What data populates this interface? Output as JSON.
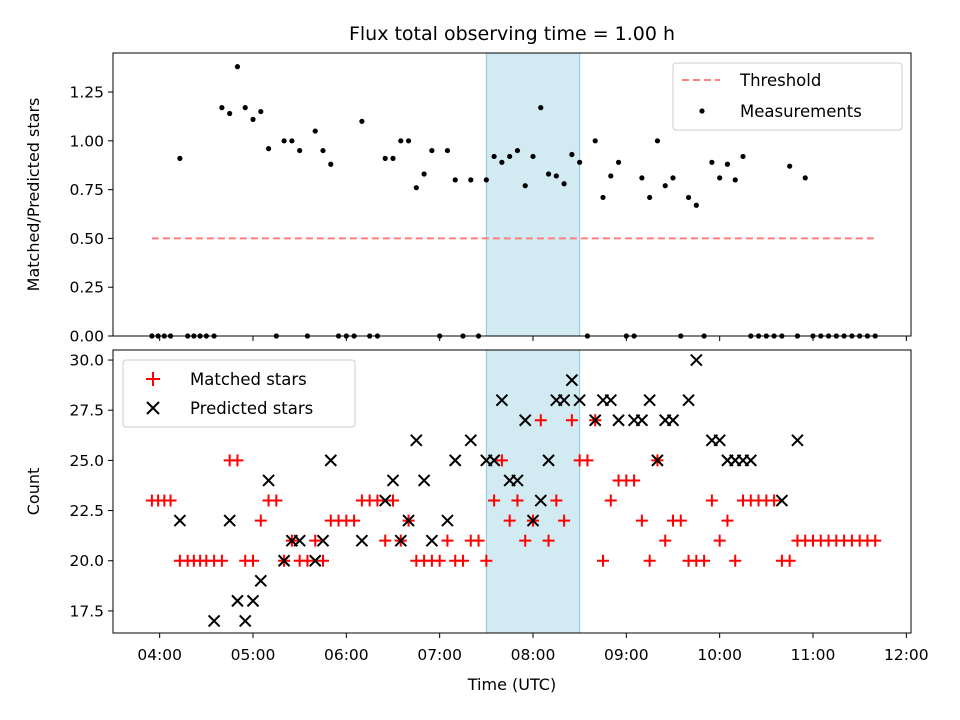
{
  "figure": {
    "title": "Flux total observing time = 1.00 h",
    "xlabel": "Time (UTC)",
    "x_ticks": [
      "04:00",
      "05:00",
      "06:00",
      "07:00",
      "08:00",
      "09:00",
      "10:00",
      "11:00",
      "12:00"
    ],
    "shaded_window": {
      "start": "07:30",
      "end": "08:30",
      "color": "#add8e6"
    }
  },
  "chart_data": [
    {
      "type": "scatter",
      "ylabel": "Matched/Predicted stars",
      "xlim": [
        "03:30",
        "12:03"
      ],
      "ylim": [
        0,
        1.45
      ],
      "y_ticks": [
        "0.00",
        "0.25",
        "0.50",
        "0.75",
        "1.00",
        "1.25"
      ],
      "legend_position": "upper-right",
      "threshold": {
        "name": "Threshold",
        "value": 0.5,
        "x_start": "03:55",
        "x_end": "11:40",
        "color": "#ff7f7f"
      },
      "series": [
        {
          "name": "Measurements",
          "color": "#000000",
          "points": [
            [
              "03:55",
              0
            ],
            [
              "03:59",
              0
            ],
            [
              "04:03",
              0
            ],
            [
              "04:07",
              0
            ],
            [
              "04:13",
              0.91
            ],
            [
              "04:18",
              0
            ],
            [
              "04:22",
              0
            ],
            [
              "04:26",
              0
            ],
            [
              "04:30",
              0
            ],
            [
              "04:35",
              0
            ],
            [
              "04:40",
              1.17
            ],
            [
              "04:45",
              1.14
            ],
            [
              "04:50",
              1.38
            ],
            [
              "04:55",
              1.17
            ],
            [
              "05:00",
              1.11
            ],
            [
              "05:05",
              1.15
            ],
            [
              "05:10",
              0.96
            ],
            [
              "05:15",
              0
            ],
            [
              "05:20",
              1.0
            ],
            [
              "05:25",
              1.0
            ],
            [
              "05:30",
              0.95
            ],
            [
              "05:35",
              0
            ],
            [
              "05:40",
              1.05
            ],
            [
              "05:45",
              0.95
            ],
            [
              "05:50",
              0.88
            ],
            [
              "05:55",
              0
            ],
            [
              "06:00",
              0
            ],
            [
              "06:05",
              0
            ],
            [
              "06:10",
              1.1
            ],
            [
              "06:15",
              0
            ],
            [
              "06:20",
              0
            ],
            [
              "06:25",
              0.91
            ],
            [
              "06:30",
              0.91
            ],
            [
              "06:35",
              1.0
            ],
            [
              "06:40",
              1.0
            ],
            [
              "06:45",
              0.76
            ],
            [
              "06:50",
              0.83
            ],
            [
              "06:55",
              0.95
            ],
            [
              "07:00",
              0
            ],
            [
              "07:05",
              0.95
            ],
            [
              "07:10",
              0.8
            ],
            [
              "07:15",
              0
            ],
            [
              "07:20",
              0.8
            ],
            [
              "07:25",
              0
            ],
            [
              "07:30",
              0.8
            ],
            [
              "07:35",
              0.92
            ],
            [
              "07:40",
              0.89
            ],
            [
              "07:45",
              0.92
            ],
            [
              "07:50",
              0.95
            ],
            [
              "07:55",
              0.77
            ],
            [
              "08:00",
              0.92
            ],
            [
              "08:05",
              1.17
            ],
            [
              "08:10",
              0.83
            ],
            [
              "08:15",
              0.82
            ],
            [
              "08:20",
              0.78
            ],
            [
              "08:25",
              0.93
            ],
            [
              "08:30",
              0.89
            ],
            [
              "08:35",
              0
            ],
            [
              "08:40",
              1.0
            ],
            [
              "08:45",
              0.71
            ],
            [
              "08:50",
              0.82
            ],
            [
              "08:55",
              0.89
            ],
            [
              "09:00",
              0
            ],
            [
              "09:05",
              0
            ],
            [
              "09:10",
              0.81
            ],
            [
              "09:15",
              0.71
            ],
            [
              "09:20",
              1.0
            ],
            [
              "09:25",
              0.77
            ],
            [
              "09:30",
              0.81
            ],
            [
              "09:35",
              0
            ],
            [
              "09:40",
              0.71
            ],
            [
              "09:45",
              0.67
            ],
            [
              "09:50",
              0
            ],
            [
              "09:55",
              0.89
            ],
            [
              "10:00",
              0.81
            ],
            [
              "10:05",
              0.88
            ],
            [
              "10:10",
              0.8
            ],
            [
              "10:15",
              0.92
            ],
            [
              "10:20",
              0
            ],
            [
              "10:25",
              0
            ],
            [
              "10:30",
              0
            ],
            [
              "10:35",
              0
            ],
            [
              "10:40",
              0
            ],
            [
              "10:45",
              0.87
            ],
            [
              "10:50",
              0
            ],
            [
              "10:55",
              0.81
            ],
            [
              "11:00",
              0
            ],
            [
              "11:05",
              0
            ],
            [
              "11:10",
              0
            ],
            [
              "11:15",
              0
            ],
            [
              "11:20",
              0
            ],
            [
              "11:25",
              0
            ],
            [
              "11:30",
              0
            ],
            [
              "11:35",
              0
            ],
            [
              "11:40",
              0
            ]
          ]
        }
      ]
    },
    {
      "type": "scatter",
      "ylabel": "Count",
      "xlim": [
        "03:30",
        "12:03"
      ],
      "ylim": [
        16.4,
        30.5
      ],
      "y_ticks": [
        "17.5",
        "20.0",
        "22.5",
        "25.0",
        "27.5",
        "30.0"
      ],
      "legend_position": "upper-left",
      "series": [
        {
          "name": "Matched stars",
          "marker": "plus",
          "color": "#ff0000",
          "points": [
            [
              "03:55",
              23
            ],
            [
              "03:59",
              23
            ],
            [
              "04:03",
              23
            ],
            [
              "04:07",
              23
            ],
            [
              "04:13",
              20
            ],
            [
              "04:18",
              20
            ],
            [
              "04:22",
              20
            ],
            [
              "04:26",
              20
            ],
            [
              "04:30",
              20
            ],
            [
              "04:35",
              20
            ],
            [
              "04:40",
              20
            ],
            [
              "04:45",
              25
            ],
            [
              "04:50",
              25
            ],
            [
              "04:55",
              20
            ],
            [
              "05:00",
              20
            ],
            [
              "05:05",
              22
            ],
            [
              "05:10",
              23
            ],
            [
              "05:15",
              23
            ],
            [
              "05:20",
              20
            ],
            [
              "05:25",
              21
            ],
            [
              "05:30",
              20
            ],
            [
              "05:35",
              20
            ],
            [
              "05:40",
              21
            ],
            [
              "05:45",
              20
            ],
            [
              "05:50",
              22
            ],
            [
              "05:55",
              22
            ],
            [
              "06:00",
              22
            ],
            [
              "06:05",
              22
            ],
            [
              "06:10",
              23
            ],
            [
              "06:15",
              23
            ],
            [
              "06:20",
              23
            ],
            [
              "06:25",
              21
            ],
            [
              "06:30",
              23
            ],
            [
              "06:35",
              21
            ],
            [
              "06:40",
              22
            ],
            [
              "06:45",
              20
            ],
            [
              "06:50",
              20
            ],
            [
              "06:55",
              20
            ],
            [
              "07:00",
              20
            ],
            [
              "07:05",
              21
            ],
            [
              "07:10",
              20
            ],
            [
              "07:15",
              20
            ],
            [
              "07:20",
              21
            ],
            [
              "07:25",
              21
            ],
            [
              "07:30",
              20
            ],
            [
              "07:35",
              23
            ],
            [
              "07:40",
              25
            ],
            [
              "07:45",
              22
            ],
            [
              "07:50",
              23
            ],
            [
              "07:55",
              21
            ],
            [
              "08:00",
              22
            ],
            [
              "08:05",
              27
            ],
            [
              "08:10",
              21
            ],
            [
              "08:15",
              23
            ],
            [
              "08:20",
              22
            ],
            [
              "08:25",
              27
            ],
            [
              "08:30",
              25
            ],
            [
              "08:35",
              25
            ],
            [
              "08:40",
              27
            ],
            [
              "08:45",
              20
            ],
            [
              "08:50",
              23
            ],
            [
              "08:55",
              24
            ],
            [
              "09:00",
              24
            ],
            [
              "09:05",
              24
            ],
            [
              "09:10",
              22
            ],
            [
              "09:15",
              20
            ],
            [
              "09:20",
              25
            ],
            [
              "09:25",
              21
            ],
            [
              "09:30",
              22
            ],
            [
              "09:35",
              22
            ],
            [
              "09:40",
              20
            ],
            [
              "09:45",
              20
            ],
            [
              "09:50",
              20
            ],
            [
              "09:55",
              23
            ],
            [
              "10:00",
              21
            ],
            [
              "10:05",
              22
            ],
            [
              "10:10",
              20
            ],
            [
              "10:15",
              23
            ],
            [
              "10:20",
              23
            ],
            [
              "10:25",
              23
            ],
            [
              "10:30",
              23
            ],
            [
              "10:35",
              23
            ],
            [
              "10:40",
              20
            ],
            [
              "10:45",
              20
            ],
            [
              "10:50",
              21
            ],
            [
              "10:55",
              21
            ],
            [
              "11:00",
              21
            ],
            [
              "11:05",
              21
            ],
            [
              "11:10",
              21
            ],
            [
              "11:15",
              21
            ],
            [
              "11:20",
              21
            ],
            [
              "11:25",
              21
            ],
            [
              "11:30",
              21
            ],
            [
              "11:35",
              21
            ],
            [
              "11:40",
              21
            ]
          ]
        },
        {
          "name": "Predicted stars",
          "marker": "x",
          "color": "#000000",
          "points": [
            [
              "04:13",
              22
            ],
            [
              "04:35",
              17
            ],
            [
              "04:45",
              22
            ],
            [
              "04:50",
              18
            ],
            [
              "04:55",
              17
            ],
            [
              "05:00",
              18
            ],
            [
              "05:05",
              19
            ],
            [
              "05:10",
              24
            ],
            [
              "05:20",
              20
            ],
            [
              "05:25",
              21
            ],
            [
              "05:30",
              21
            ],
            [
              "05:40",
              20
            ],
            [
              "05:45",
              21
            ],
            [
              "05:50",
              25
            ],
            [
              "06:10",
              21
            ],
            [
              "06:25",
              23
            ],
            [
              "06:30",
              24
            ],
            [
              "06:35",
              21
            ],
            [
              "06:40",
              22
            ],
            [
              "06:45",
              26
            ],
            [
              "06:50",
              24
            ],
            [
              "06:55",
              21
            ],
            [
              "07:05",
              22
            ],
            [
              "07:10",
              25
            ],
            [
              "07:20",
              26
            ],
            [
              "07:30",
              25
            ],
            [
              "07:35",
              25
            ],
            [
              "07:40",
              28
            ],
            [
              "07:45",
              24
            ],
            [
              "07:50",
              24
            ],
            [
              "07:55",
              27
            ],
            [
              "08:00",
              22
            ],
            [
              "08:05",
              23
            ],
            [
              "08:10",
              25
            ],
            [
              "08:15",
              28
            ],
            [
              "08:20",
              28
            ],
            [
              "08:25",
              29
            ],
            [
              "08:30",
              28
            ],
            [
              "08:40",
              27
            ],
            [
              "08:45",
              28
            ],
            [
              "08:50",
              28
            ],
            [
              "08:55",
              27
            ],
            [
              "09:05",
              27
            ],
            [
              "09:10",
              27
            ],
            [
              "09:15",
              28
            ],
            [
              "09:20",
              25
            ],
            [
              "09:25",
              27
            ],
            [
              "09:30",
              27
            ],
            [
              "09:40",
              28
            ],
            [
              "09:45",
              30
            ],
            [
              "09:55",
              26
            ],
            [
              "10:00",
              26
            ],
            [
              "10:05",
              25
            ],
            [
              "10:10",
              25
            ],
            [
              "10:15",
              25
            ],
            [
              "10:20",
              25
            ],
            [
              "10:40",
              23
            ],
            [
              "10:50",
              26
            ]
          ]
        }
      ]
    }
  ]
}
